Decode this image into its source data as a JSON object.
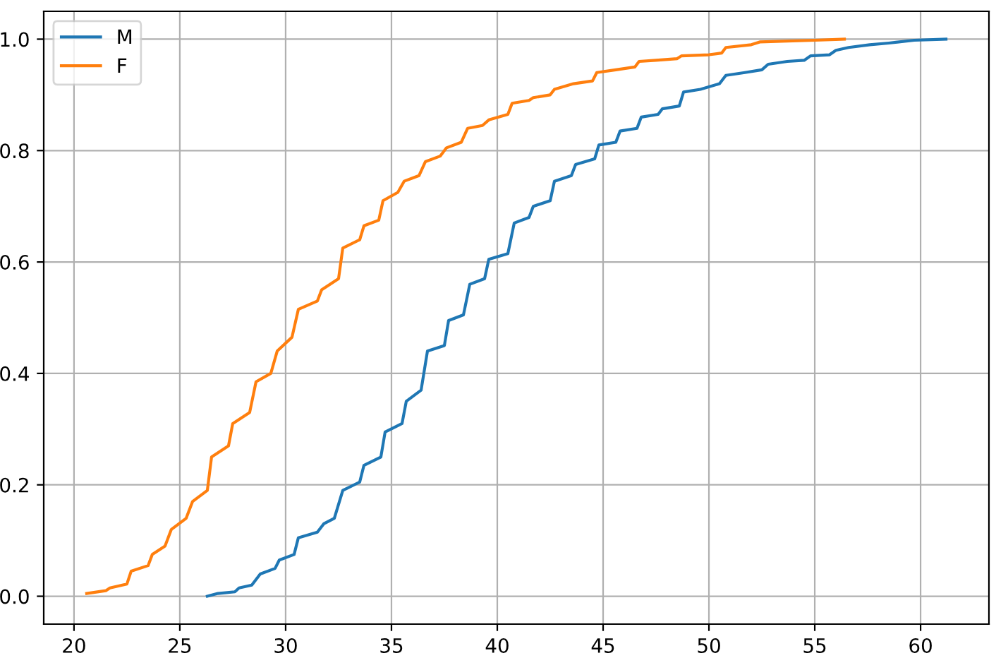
{
  "chart_data": {
    "type": "line",
    "xlim": [
      18.57,
      63.23
    ],
    "ylim": [
      -0.05,
      1.05
    ],
    "xticks": [
      20,
      25,
      30,
      35,
      40,
      45,
      50,
      55,
      60
    ],
    "yticks": [
      {
        "value": 0,
        "label": "0.0"
      },
      {
        "value": 0.2,
        "label": "0.2"
      },
      {
        "value": 0.4,
        "label": "0.4"
      },
      {
        "value": 0.6,
        "label": "0.6"
      },
      {
        "value": 0.8,
        "label": "0.8"
      },
      {
        "value": 1.0,
        "label": "1.0"
      }
    ],
    "grid": true,
    "legend": "top left",
    "series": [
      {
        "name": "M",
        "color": "#1f77b4",
        "x": [
          26.3,
          26.8,
          27.6,
          27.8,
          28.4,
          28.8,
          29.5,
          29.7,
          30.4,
          30.6,
          31.5,
          31.8,
          32.3,
          32.7,
          33.5,
          33.7,
          34.5,
          34.7,
          35.5,
          35.7,
          36.4,
          36.7,
          37.5,
          37.7,
          38.4,
          38.7,
          39.4,
          39.6,
          40.5,
          40.8,
          41.5,
          41.7,
          42.5,
          42.7,
          43.5,
          43.7,
          44.6,
          44.8,
          45.6,
          45.8,
          46.6,
          46.8,
          47.6,
          47.8,
          48.6,
          48.8,
          49.6,
          50.5,
          50.8,
          51.7,
          52.5,
          52.8,
          53.7,
          54.5,
          54.8,
          55.7,
          56.0,
          56.6,
          57.6,
          58.5,
          59.7,
          61.2
        ],
        "values": [
          0,
          0.005,
          0.008,
          0.015,
          0.02,
          0.04,
          0.05,
          0.065,
          0.075,
          0.105,
          0.115,
          0.13,
          0.14,
          0.19,
          0.205,
          0.235,
          0.25,
          0.295,
          0.31,
          0.35,
          0.37,
          0.44,
          0.45,
          0.495,
          0.505,
          0.56,
          0.57,
          0.605,
          0.615,
          0.67,
          0.68,
          0.7,
          0.71,
          0.745,
          0.755,
          0.775,
          0.785,
          0.81,
          0.815,
          0.835,
          0.84,
          0.86,
          0.865,
          0.875,
          0.88,
          0.905,
          0.91,
          0.92,
          0.935,
          0.94,
          0.945,
          0.955,
          0.96,
          0.962,
          0.97,
          0.972,
          0.98,
          0.985,
          0.99,
          0.993,
          0.998,
          1.0
        ]
      },
      {
        "name": "F",
        "color": "#ff7f0e",
        "x": [
          20.6,
          21.5,
          21.7,
          22.5,
          22.7,
          23.5,
          23.7,
          24.3,
          24.6,
          25.3,
          25.6,
          26.3,
          26.5,
          27.3,
          27.5,
          28.3,
          28.6,
          29.3,
          29.6,
          30.3,
          30.6,
          31.5,
          31.7,
          32.5,
          32.7,
          33.5,
          33.7,
          34.4,
          34.6,
          35.3,
          35.6,
          36.3,
          36.6,
          37.3,
          37.6,
          38.3,
          38.6,
          39.3,
          39.6,
          40.5,
          40.7,
          41.5,
          41.7,
          42.5,
          42.7,
          43.6,
          44.5,
          44.7,
          45.6,
          46.5,
          46.7,
          47.5,
          48.5,
          48.7,
          50.0,
          50.6,
          50.8,
          52.0,
          52.4,
          55.0,
          56.4
        ],
        "values": [
          0.005,
          0.01,
          0.015,
          0.022,
          0.045,
          0.055,
          0.075,
          0.09,
          0.12,
          0.14,
          0.17,
          0.19,
          0.25,
          0.27,
          0.31,
          0.33,
          0.385,
          0.4,
          0.44,
          0.465,
          0.515,
          0.53,
          0.55,
          0.57,
          0.625,
          0.64,
          0.665,
          0.675,
          0.71,
          0.725,
          0.745,
          0.755,
          0.78,
          0.79,
          0.805,
          0.815,
          0.84,
          0.845,
          0.855,
          0.865,
          0.885,
          0.89,
          0.895,
          0.9,
          0.91,
          0.92,
          0.925,
          0.94,
          0.945,
          0.95,
          0.96,
          0.962,
          0.965,
          0.97,
          0.972,
          0.975,
          0.985,
          0.99,
          0.995,
          0.998,
          1.0
        ]
      }
    ]
  }
}
